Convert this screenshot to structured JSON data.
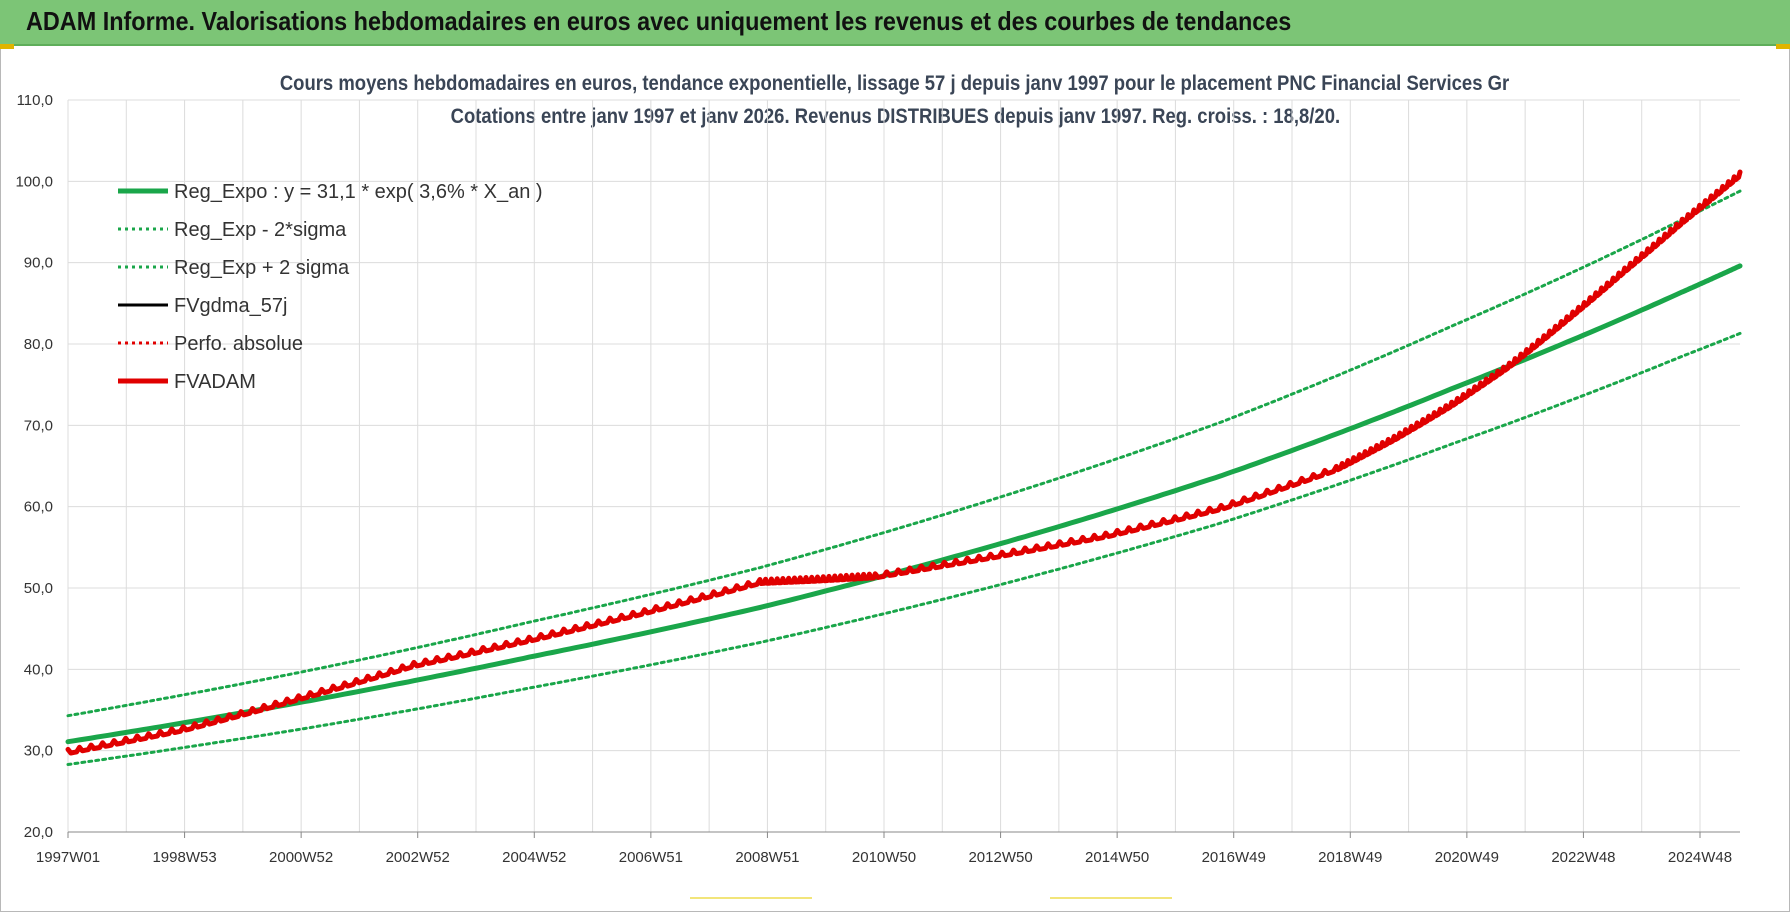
{
  "header": {
    "title": "ADAM Informe. Valorisations hebdomadaires en euros avec uniquement les revenus et des courbes de tendances"
  },
  "colors": {
    "header_bg": "#7cc576",
    "reg_green": "#1aa64a",
    "fvadam_red": "#e00000",
    "grid": "#dcdcdc"
  },
  "chart_data": {
    "type": "line",
    "title": "Cours moyens hebdomadaires en euros, tendance exponentielle, lissage 57 j depuis janv 1997  pour le placement PNC Financial Services Gr",
    "subtitle": "Cotations entre janv 1997 et janv 2026. Revenus DISTRIBUES depuis janv 1997. Reg. croiss. : 18,8/20.",
    "xlabel": "",
    "ylabel": "",
    "ylim": [
      20,
      110
    ],
    "yticks": [
      "110,0",
      "100,0",
      "90,0",
      "80,0",
      "70,0",
      "60,0",
      "50,0",
      "40,0",
      "30,0",
      "20,0"
    ],
    "xticks": [
      "1997W01",
      "1998W53",
      "2000W52",
      "2002W52",
      "2004W52",
      "2006W51",
      "2008W51",
      "2010W50",
      "2012W50",
      "2014W50",
      "2016W49",
      "2018W49",
      "2020W49",
      "2022W48",
      "2024W48"
    ],
    "x_range_years": [
      1997.0,
      2026.0
    ],
    "grid": true,
    "legend_position": "top-left",
    "legend": [
      {
        "label": "Reg_Expo : y = 31,1 * exp( 3,6% *  X_an )",
        "style": "solid-thick",
        "color": "#1aa64a"
      },
      {
        "label": "Reg_Exp - 2*sigma",
        "style": "dotted",
        "color": "#1aa64a"
      },
      {
        "label": "Reg_Exp + 2 sigma",
        "style": "dotted",
        "color": "#1aa64a"
      },
      {
        "label": "FVgdma_57j",
        "style": "solid",
        "color": "#000000"
      },
      {
        "label": "Perfo. absolue",
        "style": "dotted",
        "color": "#e00000"
      },
      {
        "label": "FVADAM",
        "style": "solid-thick",
        "color": "#e00000"
      }
    ],
    "series": [
      {
        "name": "Reg_Expo : y = 31,1 * exp( 3,6% *  X_an )",
        "x": [
          1997,
          2001,
          2005,
          2009,
          2013,
          2017,
          2021,
          2025,
          2026
        ],
        "y": [
          31.1,
          35.9,
          41.5,
          47.6,
          55.1,
          63.8,
          74.5,
          86.4,
          89.6
        ]
      },
      {
        "name": "Reg_Exp - 2*sigma",
        "x": [
          1997,
          2001,
          2005,
          2009,
          2013,
          2017,
          2021,
          2025,
          2026
        ],
        "y": [
          28.3,
          32.6,
          37.7,
          43.3,
          50.1,
          58.0,
          67.7,
          78.5,
          81.3
        ]
      },
      {
        "name": "Reg_Exp + 2 sigma",
        "x": [
          1997,
          2001,
          2005,
          2009,
          2013,
          2017,
          2021,
          2025,
          2026
        ],
        "y": [
          34.3,
          39.6,
          45.8,
          52.5,
          60.8,
          70.4,
          82.2,
          95.3,
          98.8
        ]
      },
      {
        "name": "FVADAM",
        "x": [
          1997,
          1999,
          2001,
          2003,
          2005,
          2007,
          2009,
          2010,
          2011,
          2013,
          2015,
          2017,
          2019,
          2020,
          2021,
          2022,
          2023,
          2024,
          2025,
          2026
        ],
        "y": [
          29.8,
          32.6,
          36.4,
          40.5,
          43.6,
          47.0,
          50.7,
          51.0,
          51.4,
          53.8,
          56.4,
          59.8,
          64.6,
          68.3,
          72.5,
          77.3,
          83.0,
          89.0,
          95.0,
          100.8
        ]
      }
    ]
  },
  "footer_marks": {
    "label_a": "",
    "label_b": ""
  }
}
